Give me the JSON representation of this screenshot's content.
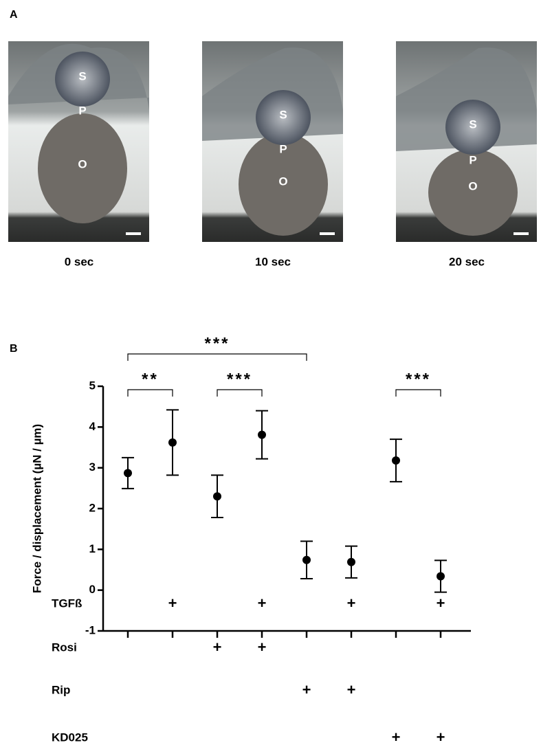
{
  "panel_a": {
    "label": "A",
    "images": [
      {
        "caption": "0 sec",
        "labels": [
          "S",
          "P",
          "O"
        ]
      },
      {
        "caption": "10 sec",
        "labels": [
          "S",
          "P",
          "O"
        ]
      },
      {
        "caption": "20 sec",
        "labels": [
          "S",
          "P",
          "O"
        ]
      }
    ]
  },
  "chart_data": {
    "type": "errorbar",
    "panel_label": "B",
    "y_label": "Force / displacement (µN / µm)",
    "categories": [
      null,
      null,
      null,
      null,
      null,
      null,
      null,
      null
    ],
    "values": [
      2.87,
      3.62,
      2.3,
      3.81,
      0.74,
      0.69,
      3.18,
      0.34
    ],
    "errors": [
      0.38,
      0.8,
      0.52,
      0.59,
      0.46,
      0.39,
      0.52,
      0.39
    ],
    "color": "#000000",
    "ylim": [
      -1,
      5
    ],
    "yticks": [
      -1,
      0,
      1,
      2,
      3,
      4,
      5
    ],
    "significance": [
      {
        "groups": [
          0,
          4
        ],
        "label": "***"
      },
      {
        "groups": [
          0,
          1
        ],
        "label": "**"
      },
      {
        "groups": [
          2,
          3
        ],
        "label": "***"
      },
      {
        "groups": [
          6,
          7
        ],
        "label": "***"
      }
    ],
    "treatments": [
      {
        "name": "TGFß",
        "marks": [
          null,
          "+",
          null,
          "+",
          null,
          "+",
          null,
          "+"
        ]
      },
      {
        "name": "Rosi",
        "marks": [
          null,
          null,
          "+",
          "+",
          null,
          null,
          null,
          null
        ]
      },
      {
        "name": "Rip",
        "marks": [
          null,
          null,
          null,
          null,
          "+",
          "+",
          null,
          null
        ]
      },
      {
        "name": "KD025",
        "marks": [
          null,
          null,
          null,
          null,
          null,
          null,
          "+",
          "+"
        ]
      }
    ]
  }
}
